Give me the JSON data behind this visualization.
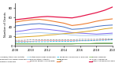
{
  "years": [
    2008,
    2009,
    2010,
    2011,
    2012,
    2013,
    2014,
    2015,
    2016,
    2017,
    2018,
    2019,
    2020
  ],
  "series": {
    "Psoriasis/Atopic Dermatitis": [
      30,
      32,
      35,
      36,
      35,
      33,
      31,
      28,
      27,
      26,
      25,
      26,
      27
    ],
    "Inflammatory Bowel Disease": [
      18,
      19,
      20,
      21,
      23,
      24,
      26,
      27,
      29,
      31,
      33,
      36,
      38
    ],
    "Multiple Sclerosis": [
      42,
      44,
      46,
      47,
      45,
      43,
      40,
      35,
      36,
      38,
      41,
      43,
      44
    ],
    "Antiphospholipid syndrome": [
      5,
      5,
      5,
      5,
      5,
      5,
      5,
      5,
      5,
      5,
      5,
      6,
      6
    ],
    "Rheumatoid Arthritis": [
      25,
      26,
      27,
      28,
      27,
      26,
      25,
      23,
      22,
      22,
      22,
      23,
      24
    ],
    "Primary Biliary Cholangitis": [
      10,
      10,
      10,
      11,
      11,
      11,
      11,
      11,
      11,
      12,
      12,
      13,
      13
    ],
    "Sjogrens Syndrome & Beyond": [
      8,
      8,
      9,
      9,
      9,
      10,
      10,
      10,
      11,
      11,
      12,
      12,
      13
    ],
    "Sjogrens": [
      4,
      4,
      4,
      4,
      4,
      4,
      4,
      4,
      5,
      5,
      5,
      5,
      5
    ],
    "SLE": [
      50,
      53,
      55,
      56,
      54,
      51,
      48,
      43,
      45,
      48,
      52,
      55,
      57
    ],
    "Celiac Disease": [
      5,
      5,
      5,
      5,
      5,
      5,
      5,
      5,
      5,
      5,
      6,
      6,
      6
    ],
    "Type 1 Diabetes": [
      12,
      12,
      13,
      13,
      13,
      13,
      13,
      13,
      14,
      14,
      14,
      15,
      15
    ],
    "Other Autoimmune Diseases": [
      55,
      57,
      59,
      61,
      62,
      61,
      60,
      59,
      62,
      66,
      70,
      75,
      82
    ]
  },
  "line_styles": {
    "Psoriasis/Atopic Dermatitis": {
      "color": "#7b68ee",
      "ls": "-",
      "lw": 0.7
    },
    "Inflammatory Bowel Disease": {
      "color": "#daa520",
      "ls": "-",
      "lw": 0.7
    },
    "Multiple Sclerosis": {
      "color": "#4472c4",
      "ls": "-",
      "lw": 0.7
    },
    "Antiphospholipid syndrome": {
      "color": "#92cddc",
      "ls": "-",
      "lw": 0.5
    },
    "Rheumatoid Arthritis": {
      "color": "#9dc3e6",
      "ls": "-",
      "lw": 0.6
    },
    "Primary Biliary Cholangitis": {
      "color": "#ff9999",
      "ls": "-",
      "lw": 0.5
    },
    "Sjogrens Syndrome & Beyond": {
      "color": "#00b0f0",
      "ls": "--",
      "lw": 0.5
    },
    "Sjogrens": {
      "color": "#548235",
      "ls": "-",
      "lw": 0.5
    },
    "SLE": {
      "color": "#ed7d31",
      "ls": "-",
      "lw": 0.8
    },
    "Celiac Disease": {
      "color": "#70ad47",
      "ls": "-",
      "lw": 0.5
    },
    "Type 1 Diabetes": {
      "color": "#808080",
      "ls": "--",
      "lw": 0.5
    },
    "Other Autoimmune Diseases": {
      "color": "#e5164a",
      "ls": "-",
      "lw": 0.9
    }
  },
  "ylim": [
    0,
    90
  ],
  "yticks": [
    0,
    20,
    40,
    60,
    80
  ],
  "ylabel": "Number of Grants",
  "xticks": [
    2008,
    2010,
    2012,
    2014,
    2016,
    2018,
    2020
  ]
}
